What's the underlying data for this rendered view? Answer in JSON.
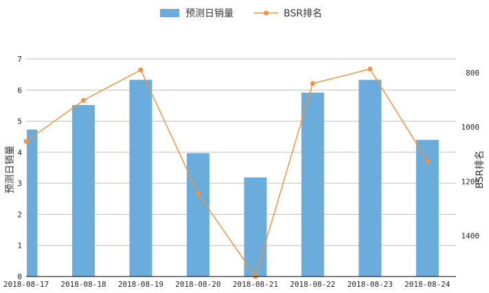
{
  "chart_data": {
    "type": "bar",
    "categories": [
      "2018-08-17",
      "2018-08-18",
      "2018-08-19",
      "2018-08-20",
      "2018-08-21",
      "2018-08-22",
      "2018-08-23",
      "2018-08-24"
    ],
    "series": [
      {
        "name": "预测日销量",
        "type": "bar",
        "axis": "left",
        "color": "#6aacdb",
        "values": [
          4.73,
          5.52,
          6.33,
          3.97,
          3.19,
          5.92,
          6.33,
          4.4
        ]
      },
      {
        "name": "BSR排名",
        "type": "line",
        "axis": "right",
        "color": "#f0923e",
        "values": [
          1053,
          902,
          790,
          1245,
          1550,
          840,
          787,
          1125
        ]
      }
    ],
    "ylabel": "预测日销量",
    "y2label": "BSR排名",
    "ylim": [
      0,
      7
    ],
    "yticks": [
      0,
      1,
      2,
      3,
      4,
      5,
      6,
      7
    ],
    "y2lim": [
      750,
      1550
    ],
    "y2_inverted": true,
    "y2ticks": [
      800,
      1000,
      1200,
      1400
    ],
    "grid": true,
    "legend_position": "top-center"
  }
}
